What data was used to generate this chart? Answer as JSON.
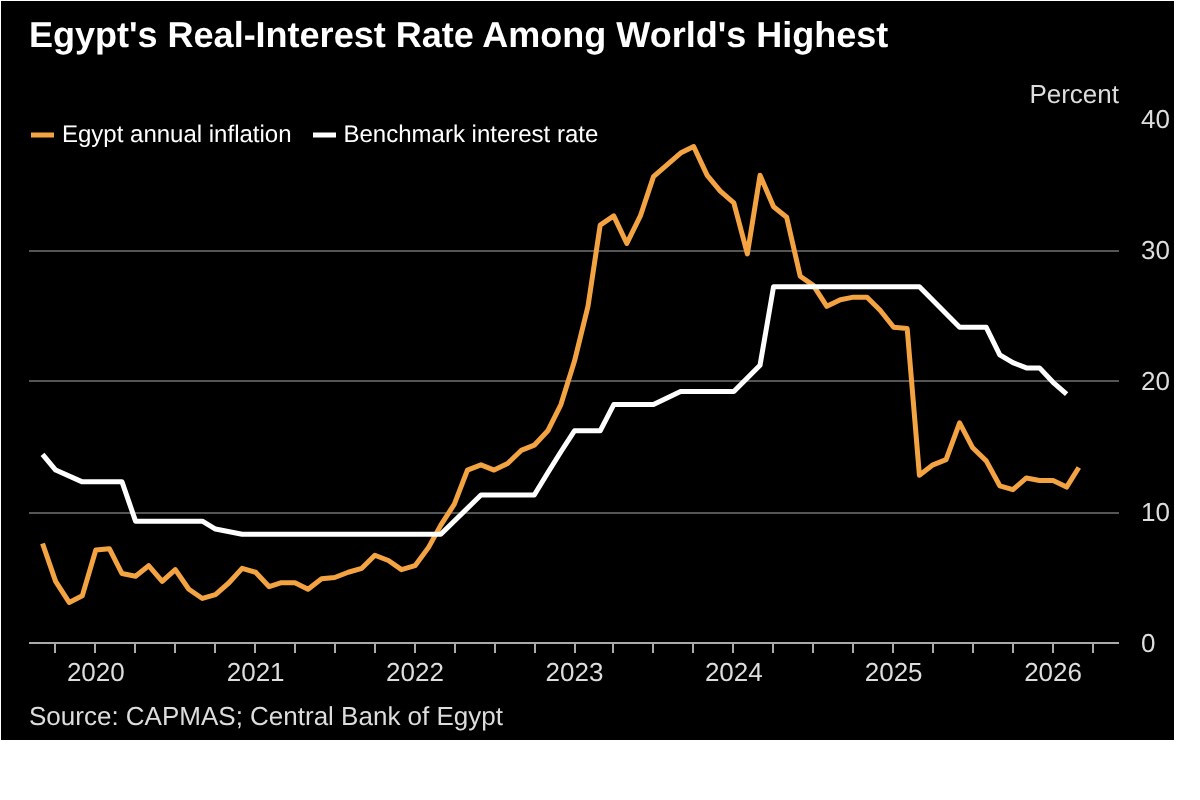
{
  "chart_data": {
    "type": "line",
    "title": "Egypt's Real-Interest Rate Among World's Highest",
    "ylabel": "Percent",
    "annotations": [
      "Source: CAPMAS; Central Bank of Egypt"
    ],
    "x": [
      "2019-09",
      "2019-10",
      "2019-11",
      "2019-12",
      "2020-01",
      "2020-02",
      "2020-03",
      "2020-04",
      "2020-05",
      "2020-06",
      "2020-07",
      "2020-08",
      "2020-09",
      "2020-10",
      "2020-11",
      "2020-12",
      "2021-01",
      "2021-02",
      "2021-03",
      "2021-04",
      "2021-05",
      "2021-06",
      "2021-07",
      "2021-08",
      "2021-09",
      "2021-10",
      "2021-11",
      "2021-12",
      "2022-01",
      "2022-02",
      "2022-03",
      "2022-04",
      "2022-05",
      "2022-06",
      "2022-07",
      "2022-08",
      "2022-09",
      "2022-10",
      "2022-11",
      "2022-12",
      "2023-01",
      "2023-02",
      "2023-03",
      "2023-04",
      "2023-05",
      "2023-06",
      "2023-07",
      "2023-08",
      "2023-09",
      "2023-10",
      "2023-11",
      "2023-12",
      "2024-01",
      "2024-02",
      "2024-03",
      "2024-04",
      "2024-05",
      "2024-06",
      "2024-07",
      "2024-08",
      "2024-09",
      "2024-10",
      "2024-11",
      "2024-12",
      "2025-01",
      "2025-02",
      "2025-03",
      "2025-04",
      "2025-05",
      "2025-06",
      "2025-07",
      "2025-08",
      "2025-09",
      "2025-10",
      "2025-11",
      "2025-12",
      "2026-01",
      "2026-02",
      "2026-03"
    ],
    "series": [
      {
        "name": "Egypt annual inflation",
        "color": "#f4a342",
        "values": [
          7.6,
          4.7,
          3.1,
          3.6,
          7.1,
          7.2,
          5.3,
          5.1,
          5.9,
          4.7,
          5.6,
          4.1,
          3.4,
          3.7,
          4.6,
          5.7,
          5.4,
          4.3,
          4.6,
          4.6,
          4.1,
          4.9,
          5.0,
          5.4,
          5.7,
          6.7,
          6.3,
          5.6,
          5.9,
          7.3,
          9.0,
          10.6,
          13.2,
          13.6,
          13.2,
          13.7,
          14.7,
          15.1,
          16.2,
          18.2,
          21.5,
          25.7,
          31.9,
          32.6,
          30.5,
          32.6,
          35.6,
          36.5,
          37.4,
          37.9,
          35.7,
          34.5,
          33.6,
          29.7,
          35.7,
          33.3,
          32.5,
          28.0,
          27.3,
          25.7,
          26.2,
          26.4,
          26.4,
          25.4,
          24.1,
          24.0,
          12.8,
          13.6,
          14.0,
          16.8,
          14.9,
          13.9,
          12.0,
          11.7,
          12.6,
          12.4,
          12.4,
          11.9,
          13.4
        ]
      },
      {
        "name": "Benchmark interest rate",
        "color": "#ffffff",
        "x": [
          "2019-09",
          "2019-10",
          "2019-12",
          "2020-03",
          "2020-04",
          "2020-09",
          "2020-10",
          "2020-12",
          "2022-03",
          "2022-06",
          "2022-10",
          "2022-11",
          "2022-12",
          "2023-01",
          "2023-03",
          "2023-04",
          "2023-07",
          "2023-09",
          "2024-01",
          "2024-03",
          "2024-04",
          "2025-03",
          "2025-06",
          "2025-08",
          "2025-09",
          "2025-10",
          "2025-11",
          "2025-12",
          "2026-01",
          "2026-02"
        ],
        "values": [
          14.4,
          13.2,
          12.3,
          12.3,
          9.3,
          9.3,
          8.7,
          8.3,
          8.3,
          11.3,
          11.3,
          13.0,
          14.6,
          16.2,
          16.2,
          18.2,
          18.2,
          19.2,
          19.2,
          21.2,
          27.2,
          27.2,
          24.1,
          24.1,
          22.0,
          21.4,
          21.0,
          21.0,
          19.9,
          19.0
        ]
      }
    ],
    "xlim": [
      "2019-08",
      "2026-06"
    ],
    "xticks": [
      {
        "value": "2019-10",
        "label": null
      },
      {
        "value": "2020-01",
        "label": "2020"
      },
      {
        "value": "2020-04",
        "label": null
      },
      {
        "value": "2020-07",
        "label": null
      },
      {
        "value": "2020-10",
        "label": null
      },
      {
        "value": "2021-01",
        "label": "2021"
      },
      {
        "value": "2021-04",
        "label": null
      },
      {
        "value": "2021-07",
        "label": null
      },
      {
        "value": "2021-10",
        "label": null
      },
      {
        "value": "2022-01",
        "label": "2022"
      },
      {
        "value": "2022-04",
        "label": null
      },
      {
        "value": "2022-07",
        "label": null
      },
      {
        "value": "2022-10",
        "label": null
      },
      {
        "value": "2023-01",
        "label": "2023"
      },
      {
        "value": "2023-04",
        "label": null
      },
      {
        "value": "2023-07",
        "label": null
      },
      {
        "value": "2023-10",
        "label": null
      },
      {
        "value": "2024-01",
        "label": "2024"
      },
      {
        "value": "2024-04",
        "label": null
      },
      {
        "value": "2024-07",
        "label": null
      },
      {
        "value": "2024-10",
        "label": null
      },
      {
        "value": "2025-01",
        "label": "2025"
      },
      {
        "value": "2025-04",
        "label": null
      },
      {
        "value": "2025-07",
        "label": null
      },
      {
        "value": "2025-10",
        "label": null
      },
      {
        "value": "2026-01",
        "label": "2026"
      },
      {
        "value": "2026-04",
        "label": null
      }
    ],
    "ylim": [
      0,
      40
    ],
    "yticks": [
      0,
      10,
      20,
      30,
      40
    ],
    "grid": "y",
    "legend": "top left",
    "line_style": "solid",
    "marker": "none"
  }
}
